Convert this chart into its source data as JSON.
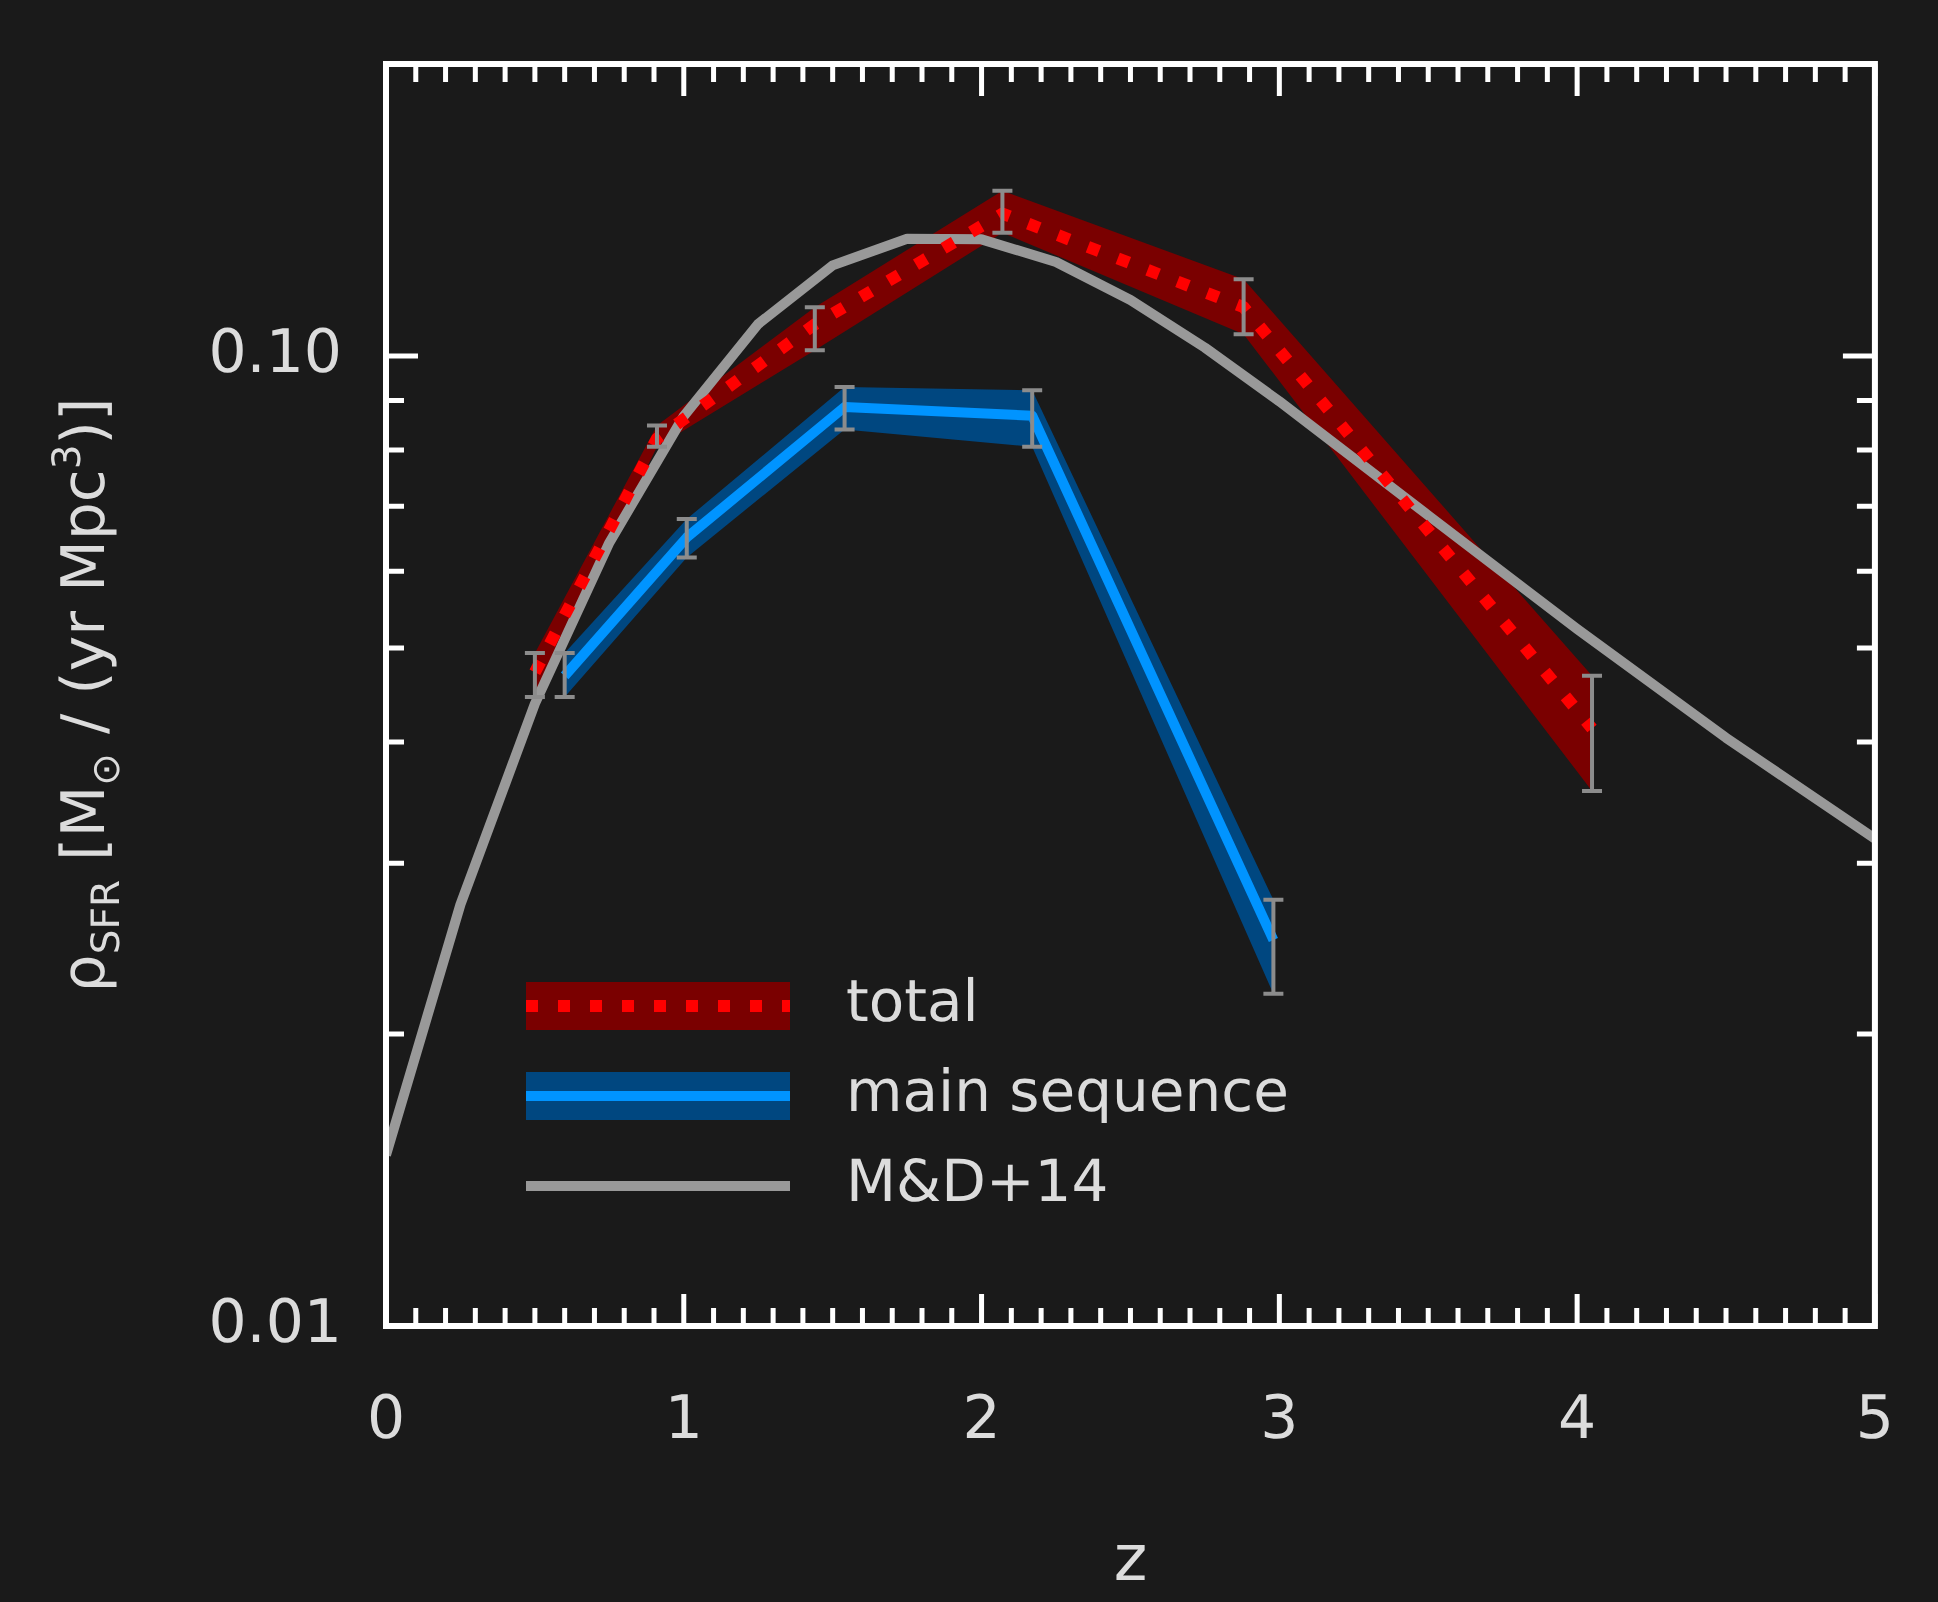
{
  "chart_data": {
    "type": "line",
    "xlabel": "z",
    "ylabel": "ρ$_{SFR}$ [M$_{⊙}$ / (yr Mpc$^{3}$)]",
    "log": "y",
    "xlim": [
      0,
      5
    ],
    "ylim": [
      0.01,
      0.2
    ],
    "xticks": [
      0,
      {
        "value": 0.1,
        "label": null
      },
      {
        "value": 0.2,
        "label": null
      },
      {
        "value": 0.3,
        "label": null
      },
      {
        "value": 0.4,
        "label": null
      },
      {
        "value": 0.5,
        "label": null
      },
      {
        "value": 0.6,
        "label": null
      },
      {
        "value": 0.7,
        "label": null
      },
      {
        "value": 0.8,
        "label": null
      },
      {
        "value": 0.9,
        "label": null
      },
      1,
      {
        "value": 1.1,
        "label": null
      },
      {
        "value": 1.2,
        "label": null
      },
      {
        "value": 1.3,
        "label": null
      },
      {
        "value": 1.4,
        "label": null
      },
      {
        "value": 1.5,
        "label": null
      },
      {
        "value": 1.6,
        "label": null
      },
      {
        "value": 1.7,
        "label": null
      },
      {
        "value": 1.8,
        "label": null
      },
      {
        "value": 1.9,
        "label": null
      },
      2,
      {
        "value": 2.1,
        "label": null
      },
      {
        "value": 2.2,
        "label": null
      },
      {
        "value": 2.3,
        "label": null
      },
      {
        "value": 2.4,
        "label": null
      },
      {
        "value": 2.5,
        "label": null
      },
      {
        "value": 2.6,
        "label": null
      },
      {
        "value": 2.7,
        "label": null
      },
      {
        "value": 2.8,
        "label": null
      },
      {
        "value": 2.9,
        "label": null
      },
      3,
      {
        "value": 3.1,
        "label": null
      },
      {
        "value": 3.2,
        "label": null
      },
      {
        "value": 3.3,
        "label": null
      },
      {
        "value": 3.4,
        "label": null
      },
      {
        "value": 3.5,
        "label": null
      },
      {
        "value": 3.6,
        "label": null
      },
      {
        "value": 3.7,
        "label": null
      },
      {
        "value": 3.8,
        "label": null
      },
      {
        "value": 3.9,
        "label": null
      },
      4,
      {
        "value": 4.1,
        "label": null
      },
      {
        "value": 4.2,
        "label": null
      },
      {
        "value": 4.3,
        "label": null
      },
      {
        "value": 4.4,
        "label": null
      },
      {
        "value": 4.5,
        "label": null
      },
      {
        "value": 4.6,
        "label": null
      },
      {
        "value": 4.7,
        "label": null
      },
      {
        "value": 4.8,
        "label": null
      },
      {
        "value": 4.9,
        "label": null
      },
      5
    ],
    "yticks": [
      0.01,
      {
        "value": 0.02,
        "label": null
      },
      {
        "value": 0.03,
        "label": null
      },
      {
        "value": 0.04,
        "label": null
      },
      {
        "value": 0.05,
        "label": null
      },
      {
        "value": 0.06,
        "label": null
      },
      {
        "value": 0.07,
        "label": null
      },
      {
        "value": 0.08,
        "label": null
      },
      {
        "value": 0.09,
        "label": null
      },
      {
        "value": 0.1,
        "label": "0.10"
      },
      {
        "value": 0.2,
        "label": null
      }
    ],
    "legend": "bottom left",
    "grid": false,
    "series": [
      {
        "name": "total",
        "color": "#ff0000",
        "line_style": "dotted",
        "x": [
          0.5,
          0.91,
          1.44,
          2.07,
          2.88,
          4.05
        ],
        "values": [
          0.0472,
          0.0822,
          0.1078,
          0.1402,
          0.1123,
          0.0413
        ],
        "lower": [
          0.0445,
          0.0806,
          0.1014,
          0.134,
          0.1053,
          0.0356
        ],
        "upper": [
          0.0494,
          0.0848,
          0.1123,
          0.148,
          0.12,
          0.0468
        ],
        "errors": [
          [
            0.0445,
            0.0494
          ],
          [
            0.0806,
            0.0848
          ],
          [
            0.1014,
            0.1123
          ],
          [
            0.134,
            0.148
          ],
          [
            0.1053,
            0.12
          ],
          [
            0.0356,
            0.0468
          ]
        ]
      },
      {
        "name": "main sequence",
        "color": "#0094ff",
        "line_style": "solid",
        "x": [
          0.6,
          1.01,
          1.54,
          2.17,
          2.98
        ],
        "values": [
          0.0468,
          0.065,
          0.0886,
          0.0868,
          0.025
        ],
        "lower": [
          0.0445,
          0.062,
          0.084,
          0.0806,
          0.022
        ],
        "upper": [
          0.0494,
          0.0679,
          0.0929,
          0.0922,
          0.0275
        ],
        "errors": [
          [
            0.0445,
            0.0494
          ],
          [
            0.062,
            0.0679
          ],
          [
            0.084,
            0.0929
          ],
          [
            0.0806,
            0.0922
          ],
          [
            0.022,
            0.0275
          ]
        ]
      },
      {
        "name": "M&D+14",
        "color": "#999999",
        "line_style": "solid",
        "x": [
          0,
          0.25,
          0.5,
          0.75,
          1,
          1.25,
          1.5,
          1.75,
          2,
          2.25,
          2.5,
          2.75,
          3,
          3.5,
          4,
          4.5,
          5
        ],
        "values": [
          0.015,
          0.0272,
          0.0438,
          0.0642,
          0.0867,
          0.1079,
          0.124,
          0.1321,
          0.1319,
          0.125,
          0.1142,
          0.102,
          0.0898,
          0.0685,
          0.0523,
          0.0404,
          0.0318
        ]
      }
    ]
  }
}
